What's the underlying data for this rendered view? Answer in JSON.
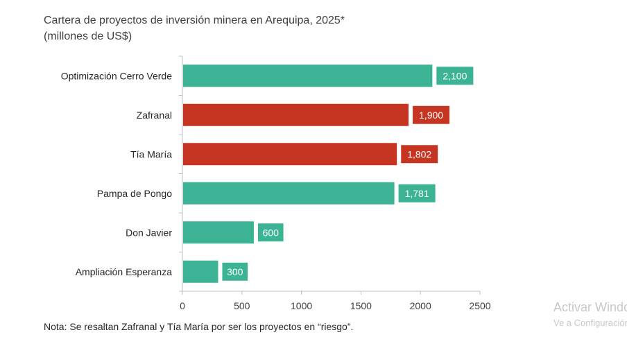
{
  "chart_data": {
    "type": "bar",
    "orientation": "horizontal",
    "title": "Cartera de proyectos de inversión minera en Arequipa, 2025*",
    "subtitle": "(millones de US$)",
    "categories": [
      "Optimización Cerro Verde",
      "Zafranal",
      "Tía María",
      "Pampa de Pongo",
      "Don Javier",
      "Ampliación Esperanza"
    ],
    "values": [
      2100,
      1900,
      1802,
      1781,
      600,
      300
    ],
    "data_labels": [
      "2,100",
      "1,900",
      "1,802",
      "1,781",
      "600",
      "300"
    ],
    "highlighted": [
      false,
      true,
      true,
      false,
      false,
      false
    ],
    "colors": {
      "normal": "#3bb394",
      "highlight": "#c63521"
    },
    "xlim": [
      0,
      2500
    ],
    "xticks": [
      "0",
      "500",
      "1000",
      "1500",
      "2000",
      "2500"
    ],
    "grid": false,
    "note": "Nota: Se resaltan Zafranal y Tía María por ser los proyectos en “riesgo”."
  },
  "watermark": {
    "line1": "Activar Windows",
    "line2": "Ve a Configuración"
  }
}
